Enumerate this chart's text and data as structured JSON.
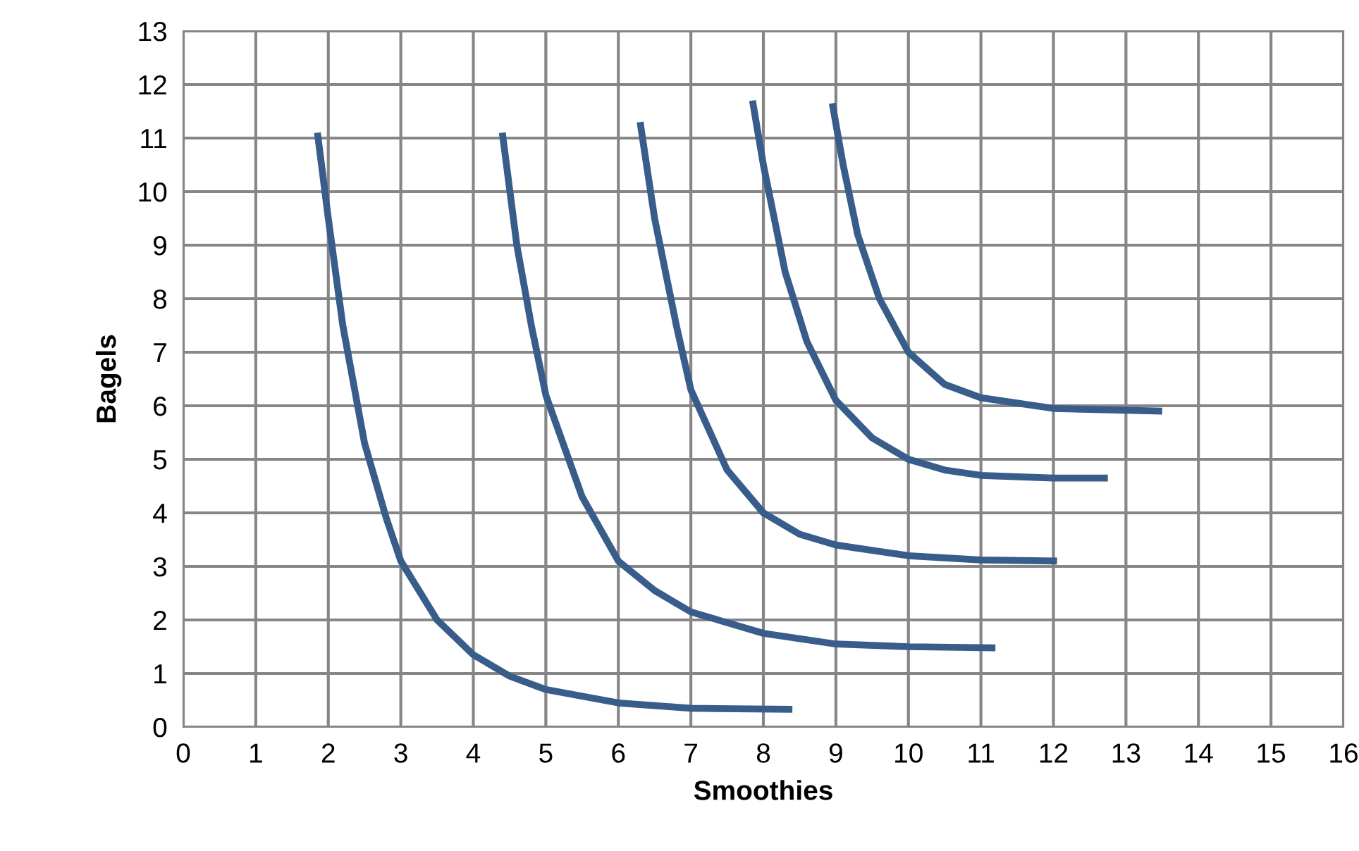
{
  "chart_data": {
    "type": "line",
    "xlabel": "Smoothies",
    "ylabel": "Bagels",
    "xlim": [
      0,
      16
    ],
    "xticks": [
      0,
      1,
      2,
      3,
      4,
      5,
      6,
      7,
      8,
      9,
      10,
      11,
      12,
      13,
      14,
      15,
      16
    ],
    "ylim": [
      0,
      13
    ],
    "yticks": [
      0,
      1,
      2,
      3,
      4,
      5,
      6,
      7,
      8,
      9,
      10,
      11,
      12,
      13
    ],
    "grid": true,
    "marker": "none",
    "line_style": "solid",
    "series": [
      {
        "color": "#385d8a",
        "x": [
          1.85,
          2.0,
          2.2,
          2.5,
          2.8,
          3.0,
          3.5,
          4.0,
          4.5,
          5.0,
          6.0,
          7.0,
          8.4
        ],
        "values": [
          11.1,
          9.5,
          7.5,
          5.3,
          3.9,
          3.1,
          2.0,
          1.35,
          0.95,
          0.7,
          0.45,
          0.35,
          0.33
        ]
      },
      {
        "color": "#385d8a",
        "x": [
          4.4,
          4.6,
          4.8,
          5.0,
          5.5,
          6.0,
          6.5,
          7.0,
          8.0,
          9.0,
          10.0,
          11.2
        ],
        "values": [
          11.1,
          9.0,
          7.5,
          6.2,
          4.3,
          3.1,
          2.55,
          2.15,
          1.75,
          1.55,
          1.5,
          1.48
        ]
      },
      {
        "color": "#385d8a",
        "x": [
          6.3,
          6.5,
          6.8,
          7.0,
          7.5,
          8.0,
          8.5,
          9.0,
          10.0,
          11.0,
          12.05
        ],
        "values": [
          11.3,
          9.5,
          7.5,
          6.3,
          4.8,
          4.0,
          3.6,
          3.4,
          3.2,
          3.12,
          3.1
        ]
      },
      {
        "color": "#385d8a",
        "x": [
          7.85,
          8.0,
          8.3,
          8.6,
          9.0,
          9.5,
          10.0,
          10.5,
          11.0,
          12.0,
          12.75
        ],
        "values": [
          11.7,
          10.5,
          8.5,
          7.2,
          6.1,
          5.4,
          5.0,
          4.8,
          4.7,
          4.65,
          4.65
        ]
      },
      {
        "color": "#385d8a",
        "x": [
          8.95,
          9.1,
          9.3,
          9.6,
          10.0,
          10.5,
          11.0,
          12.0,
          13.5
        ],
        "values": [
          11.65,
          10.5,
          9.2,
          8.0,
          7.0,
          6.4,
          6.15,
          5.95,
          5.9
        ]
      }
    ]
  }
}
